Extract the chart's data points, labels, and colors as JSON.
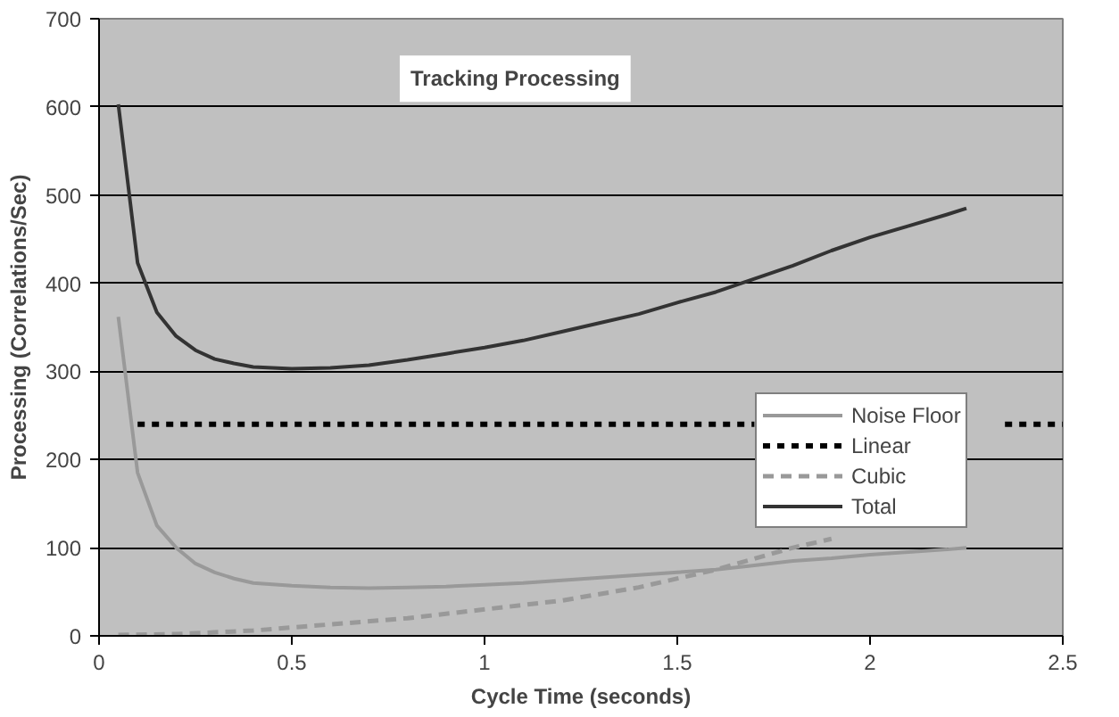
{
  "chart_data": {
    "type": "line",
    "title": "Tracking Processing",
    "xlabel": "Cycle Time (seconds)",
    "ylabel": "Processing (Correlations/Sec)",
    "xlim": [
      0,
      2.5
    ],
    "xticks": [
      0,
      0.5,
      1,
      1.5,
      2,
      2.5
    ],
    "ylim": [
      0,
      700
    ],
    "yticks": [
      0,
      100,
      200,
      300,
      400,
      500,
      600,
      700
    ],
    "grid": "y",
    "legend": "right",
    "marker": "none",
    "series": [
      {
        "name": "Noise Floor",
        "color": "#999999",
        "line_style": "solid",
        "x": [
          0.05,
          0.1,
          0.15,
          0.2,
          0.25,
          0.3,
          0.35,
          0.4,
          0.5,
          0.6,
          0.7,
          0.8,
          0.9,
          1.0,
          1.1,
          1.2,
          1.3,
          1.4,
          1.5,
          1.6,
          1.7,
          1.8,
          1.9,
          2.0,
          2.1,
          2.2,
          2.25
        ],
        "values": [
          362,
          185,
          125,
          100,
          82,
          72,
          65,
          60,
          57,
          55,
          54,
          55,
          56,
          58,
          60,
          63,
          66,
          69,
          72,
          75,
          80,
          85,
          88,
          92,
          95,
          98,
          100
        ]
      },
      {
        "name": "Linear",
        "color": "#000000",
        "line_style": "dotted",
        "x": [
          0.1,
          1.7,
          1.75,
          2.3,
          2.35,
          2.5
        ],
        "values": [
          240,
          240,
          null,
          null,
          240,
          240
        ]
      },
      {
        "name": "Cubic",
        "color": "#999999",
        "line_style": "dashed",
        "x": [
          0.05,
          0.2,
          0.4,
          0.6,
          0.8,
          1.0,
          1.2,
          1.4,
          1.6,
          1.8,
          1.9
        ],
        "values": [
          1,
          2,
          6,
          13,
          20,
          30,
          40,
          55,
          75,
          100,
          110
        ]
      },
      {
        "name": "Total",
        "color": "#333333",
        "line_style": "solid",
        "x": [
          0.05,
          0.1,
          0.15,
          0.2,
          0.25,
          0.3,
          0.35,
          0.4,
          0.5,
          0.6,
          0.7,
          0.8,
          0.9,
          1.0,
          1.1,
          1.2,
          1.3,
          1.4,
          1.5,
          1.6,
          1.7,
          1.8,
          1.9,
          2.0,
          2.1,
          2.2,
          2.25
        ],
        "values": [
          603,
          423,
          367,
          340,
          324,
          314,
          309,
          305,
          303,
          304,
          307,
          313,
          320,
          327,
          335,
          345,
          355,
          365,
          378,
          390,
          405,
          420,
          437,
          452,
          465,
          478,
          485
        ]
      }
    ]
  }
}
